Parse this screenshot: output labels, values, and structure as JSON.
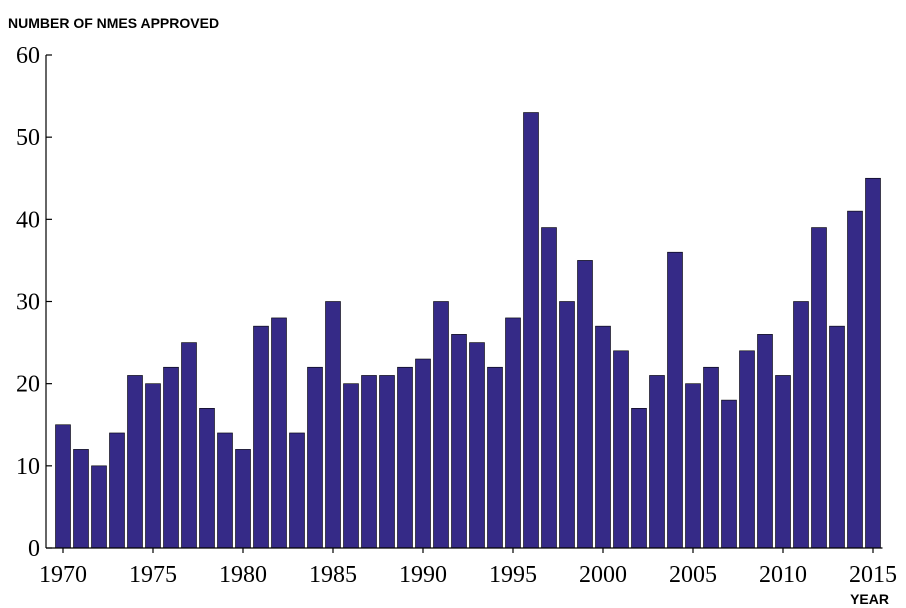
{
  "chart_data": {
    "type": "bar",
    "title": "",
    "ylabel": "NUMBER OF NMES APPROVED",
    "xlabel": "YEAR",
    "ylim": [
      0,
      60
    ],
    "yticks": [
      0,
      10,
      20,
      30,
      40,
      50,
      60
    ],
    "xticks": [
      1970,
      1975,
      1980,
      1985,
      1990,
      1995,
      2000,
      2005,
      2010,
      2015
    ],
    "bar_color": "#352a87",
    "grid": false,
    "categories": [
      1970,
      1971,
      1972,
      1973,
      1974,
      1975,
      1976,
      1977,
      1978,
      1979,
      1980,
      1981,
      1982,
      1983,
      1984,
      1985,
      1986,
      1987,
      1988,
      1989,
      1990,
      1991,
      1992,
      1993,
      1994,
      1995,
      1996,
      1997,
      1998,
      1999,
      2000,
      2001,
      2002,
      2003,
      2004,
      2005,
      2006,
      2007,
      2008,
      2009,
      2010,
      2011,
      2012,
      2013,
      2014,
      2015
    ],
    "values": [
      15,
      12,
      10,
      14,
      21,
      20,
      22,
      25,
      17,
      14,
      12,
      27,
      28,
      14,
      22,
      30,
      20,
      21,
      21,
      22,
      23,
      30,
      26,
      25,
      22,
      28,
      53,
      39,
      30,
      35,
      27,
      24,
      17,
      21,
      36,
      20,
      22,
      18,
      24,
      26,
      21,
      30,
      39,
      27,
      41,
      45
    ]
  }
}
